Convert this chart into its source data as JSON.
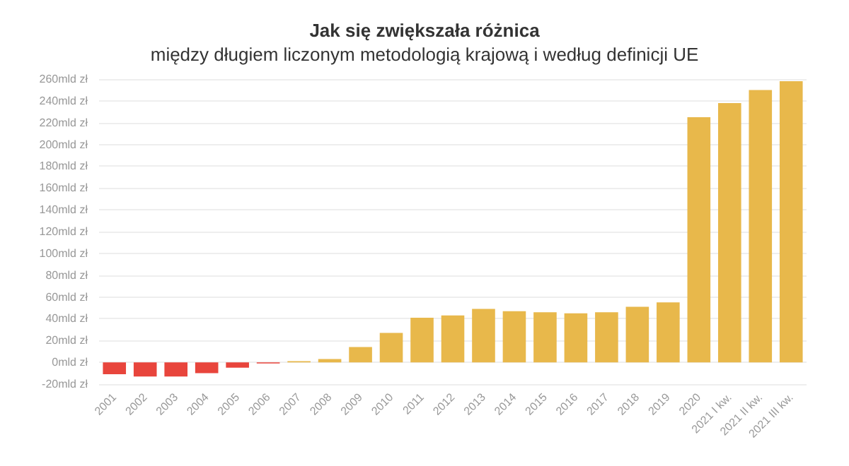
{
  "chart_data": {
    "type": "bar",
    "title": "Jak się zwiększała różnica",
    "subtitle": "między długiem liczonym metodologią krajową i według definicji UE",
    "categories": [
      "2001",
      "2002",
      "2003",
      "2004",
      "2005",
      "2006",
      "2007",
      "2008",
      "2009",
      "2010",
      "2011",
      "2012",
      "2013",
      "2014",
      "2015",
      "2016",
      "2017",
      "2018",
      "2019",
      "2020",
      "2021 I kw.",
      "2021 II kw.",
      "2021 III kw."
    ],
    "values": [
      -11,
      -13,
      -13,
      -10,
      -5,
      -1,
      1,
      3,
      14,
      27,
      41,
      43,
      49,
      47,
      46,
      45,
      46,
      51,
      55,
      225,
      238,
      250,
      258
    ],
    "colors": [
      "#e8453c",
      "#e8453c",
      "#e8453c",
      "#e8453c",
      "#e8453c",
      "#e8453c",
      "#e8b84b",
      "#e8b84b",
      "#e8b84b",
      "#e8b84b",
      "#e8b84b",
      "#e8b84b",
      "#e8b84b",
      "#e8b84b",
      "#e8b84b",
      "#e8b84b",
      "#e8b84b",
      "#e8b84b",
      "#e8b84b",
      "#e8b84b",
      "#e8b84b",
      "#e8b84b",
      "#e8b84b"
    ],
    "ylim": [
      -20,
      260
    ],
    "yticks": [
      {
        "value": -20,
        "label": "-20mld zł"
      },
      {
        "value": 0,
        "label": "0mld zł"
      },
      {
        "value": 20,
        "label": "20mld zł"
      },
      {
        "value": 40,
        "label": "40mld zł"
      },
      {
        "value": 60,
        "label": "60mld zł"
      },
      {
        "value": 80,
        "label": "80mld zł"
      },
      {
        "value": 100,
        "label": "100mld zł"
      },
      {
        "value": 120,
        "label": "120mld zł"
      },
      {
        "value": 140,
        "label": "140mld zł"
      },
      {
        "value": 160,
        "label": "160mld zł"
      },
      {
        "value": 180,
        "label": "180mld zł"
      },
      {
        "value": 200,
        "label": "200mld zł"
      },
      {
        "value": 220,
        "label": "220mld zł"
      },
      {
        "value": 240,
        "label": "240mld zł"
      },
      {
        "value": 260,
        "label": "260mld zł"
      }
    ],
    "grid": "y"
  }
}
